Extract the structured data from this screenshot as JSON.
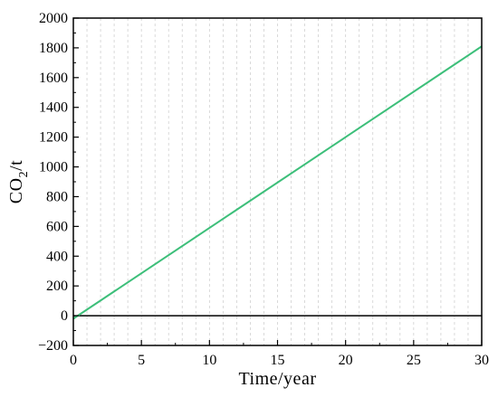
{
  "chart_data": {
    "type": "line",
    "xlabel": "Time/year",
    "ylabel_main": "CO",
    "ylabel_sub": "2",
    "ylabel_tail": "/t",
    "xlim": [
      0,
      30
    ],
    "ylim": [
      -200,
      2000
    ],
    "x_ticks": [
      0,
      5,
      10,
      15,
      20,
      25,
      30
    ],
    "y_ticks": [
      -200,
      0,
      200,
      400,
      600,
      800,
      1000,
      1200,
      1400,
      1600,
      1800,
      2000
    ],
    "x_tick_labels": [
      "0",
      "5",
      "10",
      "15",
      "20",
      "25",
      "30"
    ],
    "y_tick_labels": [
      "−200",
      "0",
      "200",
      "400",
      "600",
      "800",
      "1000",
      "1200",
      "1400",
      "1600",
      "1800",
      "2000"
    ],
    "grid": "vertical dashed, every 1 year",
    "reference_line": {
      "y": 0,
      "color": "#000000"
    },
    "series": [
      {
        "x": [
          0,
          30
        ],
        "y": [
          -20,
          1810
        ],
        "color": "#3dbf7a"
      }
    ]
  }
}
